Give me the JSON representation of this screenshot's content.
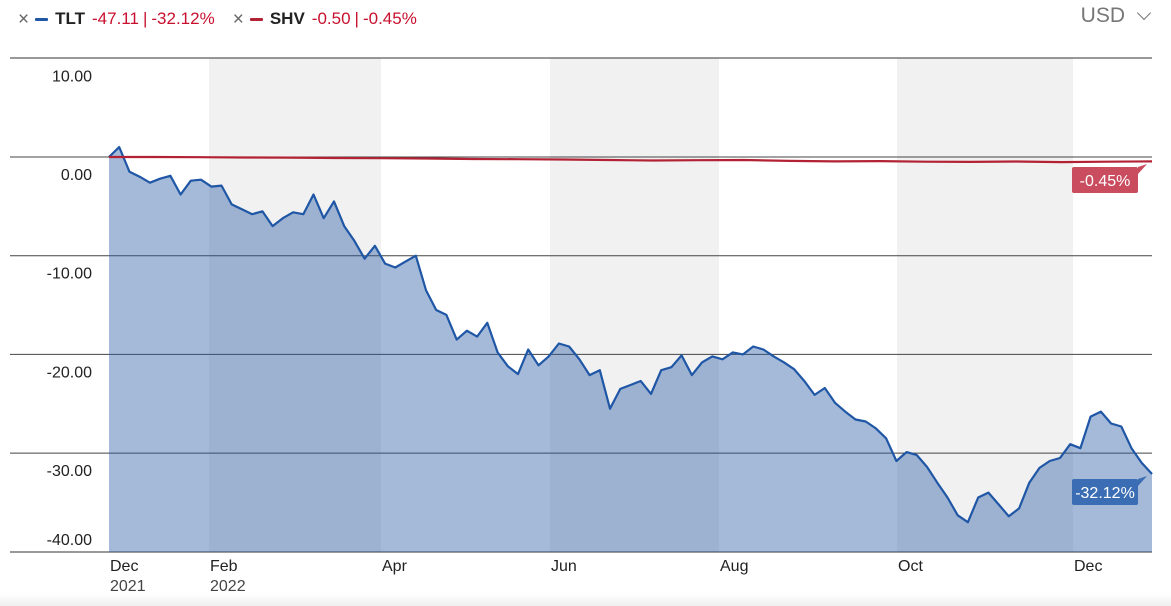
{
  "legend": [
    {
      "symbol": "TLT",
      "change": "-47.11",
      "change_pct": "-32.12%",
      "color": "#1f56a5",
      "remove_icon": "close-icon"
    },
    {
      "symbol": "SHV",
      "change": "-0.50",
      "change_pct": "-0.45%",
      "color": "#b22234",
      "remove_icon": "close-icon"
    }
  ],
  "currency": {
    "label": "USD",
    "icon": "chevron-down-icon"
  },
  "chart_data": {
    "type": "area",
    "ylim": [
      -40,
      10
    ],
    "y_ticks": [
      "10.00",
      "0.00",
      "-10.00",
      "-20.00",
      "-30.00",
      "-40.00"
    ],
    "x_ticks": [
      {
        "label": "Dec",
        "sub": "2021"
      },
      {
        "label": "Feb",
        "sub": "2022"
      },
      {
        "label": "Apr",
        "sub": ""
      },
      {
        "label": "Jun",
        "sub": ""
      },
      {
        "label": "Aug",
        "sub": ""
      },
      {
        "label": "Oct",
        "sub": ""
      },
      {
        "label": "Dec",
        "sub": ""
      }
    ],
    "end_labels": {
      "TLT": "-32.12%",
      "SHV": "-0.45%"
    },
    "series": [
      {
        "name": "TLT",
        "color": "#1f56a5",
        "values": [
          0,
          1.0,
          -1.5,
          -2.0,
          -2.6,
          -2.2,
          -1.9,
          -3.8,
          -2.4,
          -2.3,
          -3.0,
          -2.9,
          -4.8,
          -5.3,
          -5.8,
          -5.5,
          -7.0,
          -6.2,
          -5.6,
          -5.8,
          -3.8,
          -6.2,
          -4.5,
          -7.0,
          -8.5,
          -10.3,
          -9.0,
          -10.8,
          -11.2,
          -10.6,
          -10.0,
          -13.5,
          -15.5,
          -16.0,
          -18.5,
          -17.6,
          -18.2,
          -16.8,
          -19.8,
          -21.2,
          -22.0,
          -19.5,
          -21.1,
          -20.2,
          -18.9,
          -19.2,
          -20.5,
          -22.1,
          -21.6,
          -25.5,
          -23.5,
          -23.1,
          -22.7,
          -24.0,
          -21.6,
          -21.3,
          -20.1,
          -22.1,
          -20.8,
          -20.2,
          -20.5,
          -19.8,
          -20.0,
          -19.2,
          -19.5,
          -20.2,
          -20.8,
          -21.5,
          -22.7,
          -24.1,
          -23.4,
          -24.9,
          -25.8,
          -26.6,
          -26.8,
          -27.5,
          -28.5,
          -30.8,
          -29.9,
          -30.2,
          -31.4,
          -33.0,
          -34.5,
          -36.3,
          -37.0,
          -34.5,
          -34.0,
          -35.2,
          -36.4,
          -35.6,
          -33.0,
          -31.5,
          -30.8,
          -30.5,
          -29.1,
          -29.5,
          -26.3,
          -25.8,
          -27.0,
          -27.3,
          -29.5,
          -31.0,
          -32.12
        ],
        "end": -32.12
      },
      {
        "name": "SHV",
        "color": "#b22234",
        "values": [
          0,
          0,
          -0.02,
          -0.05,
          -0.06,
          -0.1,
          -0.12,
          -0.15,
          -0.2,
          -0.22,
          -0.25,
          -0.3,
          -0.35,
          -0.32,
          -0.3,
          -0.4,
          -0.45,
          -0.42,
          -0.48,
          -0.5,
          -0.46,
          -0.52,
          -0.48,
          -0.45
        ],
        "end": -0.45
      }
    ]
  }
}
